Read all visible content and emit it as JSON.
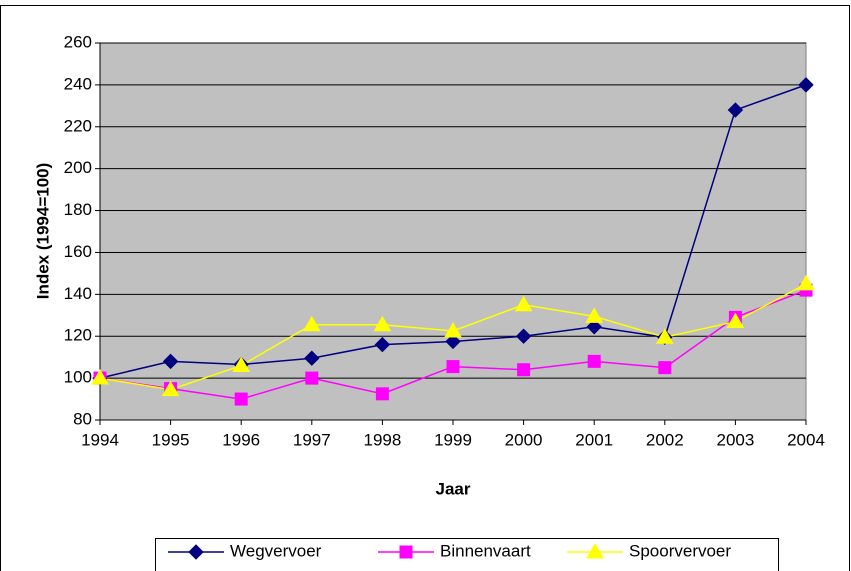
{
  "chart_data": {
    "type": "line",
    "xlabel": "Jaar",
    "ylabel": "Index (1994=100)",
    "categories": [
      "1994",
      "1995",
      "1996",
      "1997",
      "1998",
      "1999",
      "2000",
      "2001",
      "2002",
      "2003",
      "2004"
    ],
    "series": [
      {
        "name": "Wegvervoer",
        "color": "#000080",
        "marker": "diamond",
        "values": [
          100,
          108,
          106.5,
          109.5,
          116,
          117.5,
          120,
          124.5,
          119.5,
          228,
          240
        ]
      },
      {
        "name": "Binnenvaart",
        "color": "#ff00ff",
        "marker": "square",
        "values": [
          100,
          95,
          90,
          100,
          92.5,
          105.5,
          104,
          108,
          105,
          129,
          142
        ]
      },
      {
        "name": "Spoorvervoer",
        "color": "#ffff00",
        "marker": "triangle",
        "values": [
          100,
          94.5,
          106,
          125.5,
          125.5,
          122.5,
          135,
          129.5,
          119.5,
          127,
          145
        ]
      }
    ],
    "ylim": [
      80,
      260
    ],
    "yticks": [
      80,
      100,
      120,
      140,
      160,
      180,
      200,
      220,
      240,
      260
    ],
    "grid": true,
    "legend": "bottom",
    "plot_background": "#c0c0c0"
  }
}
